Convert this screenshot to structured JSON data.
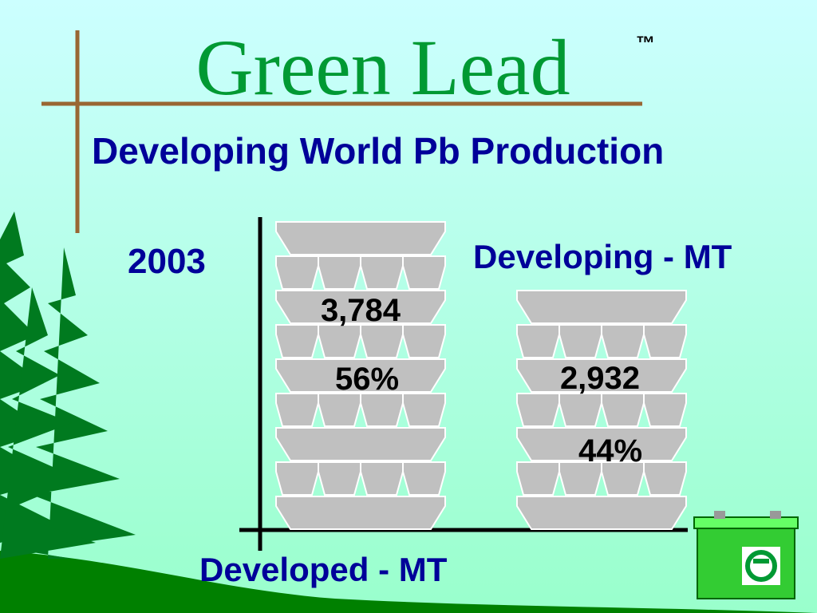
{
  "header": {
    "title": "Green Lead",
    "trademark": "™",
    "subtitle": "Developing World Pb Production"
  },
  "year": "2003",
  "stacks": [
    {
      "label": "Developed - MT",
      "amount": "3,784",
      "share": "56%"
    },
    {
      "label": "Developing - MT",
      "amount": "2,932",
      "share": "44%"
    }
  ]
}
